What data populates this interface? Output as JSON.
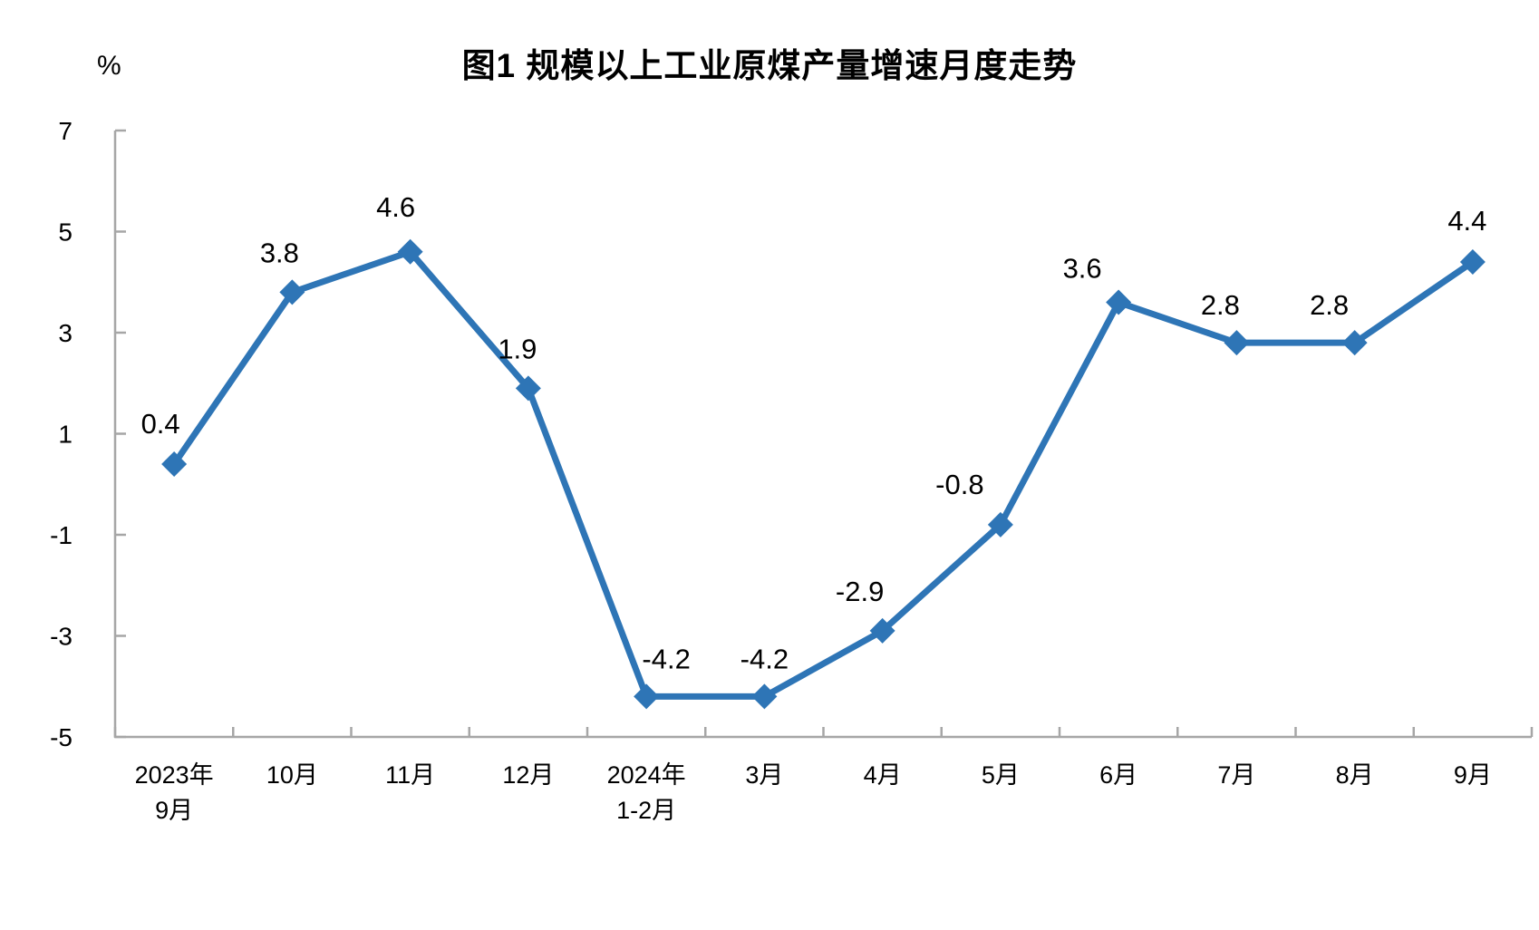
{
  "chart_data": {
    "type": "line",
    "title": "图1  规模以上工业原煤产量增速月度走势",
    "y_unit_label": "%",
    "categories": [
      [
        "2023年",
        "9月"
      ],
      [
        "10月"
      ],
      [
        "11月"
      ],
      [
        "12月"
      ],
      [
        "2024年",
        "1-2月"
      ],
      [
        "3月"
      ],
      [
        "4月"
      ],
      [
        "5月"
      ],
      [
        "6月"
      ],
      [
        "7月"
      ],
      [
        "8月"
      ],
      [
        "9月"
      ]
    ],
    "series": [
      {
        "name": "规模以上工业原煤产量增速",
        "values": [
          0.4,
          3.8,
          4.6,
          1.9,
          -4.2,
          -4.2,
          -2.9,
          -0.8,
          3.6,
          2.8,
          2.8,
          4.4
        ],
        "data_labels": [
          "0.4",
          "3.8",
          "4.6",
          "1.9",
          "-4.2",
          "-4.2",
          "-2.9",
          "-0.8",
          "3.6",
          "2.8",
          "2.8",
          "4.4"
        ]
      }
    ],
    "ylim": [
      -5,
      7
    ],
    "yticks": [
      7,
      5,
      3,
      1,
      -1,
      -3,
      -5
    ],
    "xlabel": "",
    "ylabel": "%",
    "grid": false,
    "legend": "none",
    "marker": "diamond",
    "line_color": "#2E75B6",
    "axis_color": "#A6A6A6",
    "text_color": "#000000"
  }
}
